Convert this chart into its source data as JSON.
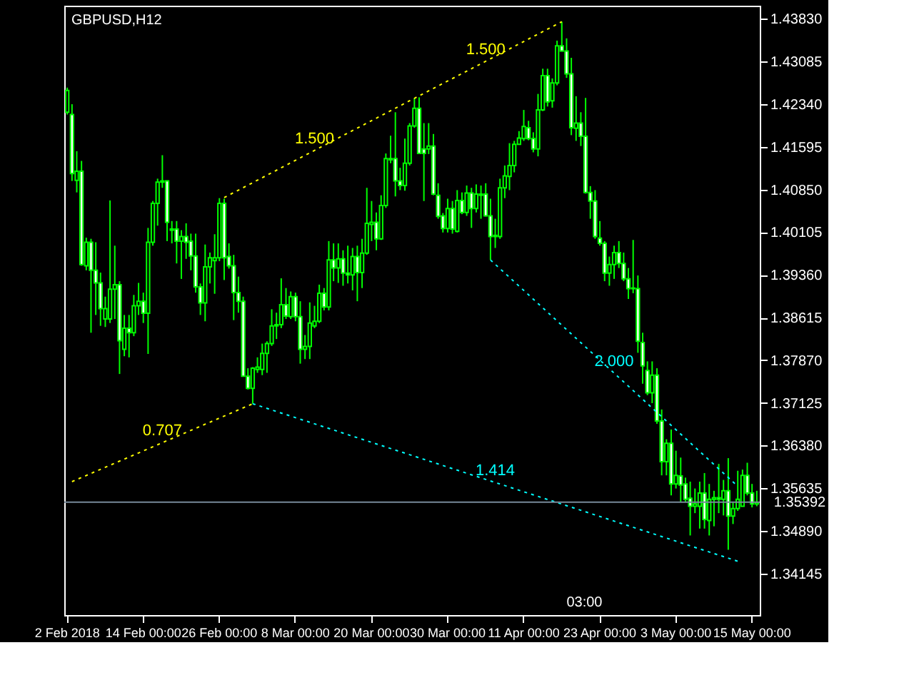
{
  "chart_data": {
    "type": "candlestick",
    "title": "GBPUSD,H12",
    "categories": [
      "2 Feb 2018",
      null,
      null,
      null,
      null,
      null,
      null,
      null,
      null,
      null,
      null,
      null,
      null,
      null,
      null,
      null,
      "14 Feb 00:00",
      null,
      null,
      null,
      null,
      null,
      null,
      null,
      null,
      null,
      null,
      null,
      null,
      null,
      null,
      null,
      "26 Feb 00:00",
      null,
      null,
      null,
      null,
      null,
      null,
      null,
      null,
      null,
      null,
      null,
      null,
      null,
      null,
      null,
      "8 Mar 00:00",
      null,
      null,
      null,
      null,
      null,
      null,
      null,
      null,
      null,
      null,
      null,
      null,
      null,
      null,
      null,
      "20 Mar 00:00",
      null,
      null,
      null,
      null,
      null,
      null,
      null,
      null,
      null,
      null,
      null,
      null,
      null,
      null,
      null,
      "30 Mar 00:00",
      null,
      null,
      null,
      null,
      null,
      null,
      null,
      null,
      null,
      null,
      null,
      null,
      null,
      null,
      null,
      "11 Apr 00:00",
      null,
      null,
      null,
      null,
      null,
      null,
      null,
      null,
      null,
      null,
      null,
      null,
      null,
      null,
      null,
      "23 Apr 00:00",
      null,
      null,
      null,
      null,
      null,
      null,
      null,
      null,
      null,
      null,
      null,
      null,
      null,
      null,
      null,
      "3 May 00:00",
      null,
      null,
      null,
      null,
      null,
      null,
      null,
      null,
      null,
      null,
      null,
      null,
      null,
      null,
      null,
      "15 May 00:00",
      null
    ],
    "ohlc": [
      [
        1.422,
        1.4263,
        1.4216,
        1.4258
      ],
      [
        1.4216,
        1.4234,
        1.41,
        1.4113
      ],
      [
        1.4101,
        1.4152,
        1.408,
        1.4117
      ],
      [
        1.4117,
        1.4135,
        1.3952,
        1.3954
      ],
      [
        1.3952,
        1.4001,
        1.3944,
        1.3993
      ],
      [
        1.3993,
        1.3999,
        1.3835,
        1.3944
      ],
      [
        1.3944,
        1.3993,
        1.3866,
        1.3922
      ],
      [
        1.3922,
        1.394,
        1.3847,
        1.3877
      ],
      [
        1.3859,
        1.3898,
        1.3845,
        1.3877
      ],
      [
        1.3859,
        1.4066,
        1.3852,
        1.3911
      ],
      [
        1.3911,
        1.3987,
        1.3859,
        1.3919
      ],
      [
        1.3919,
        1.3925,
        1.3763,
        1.3821
      ],
      [
        1.3806,
        1.3866,
        1.3794,
        1.3843
      ],
      [
        1.3843,
        1.3866,
        1.3792,
        1.3835
      ],
      [
        1.3835,
        1.3901,
        1.3829,
        1.3882
      ],
      [
        1.3882,
        1.3922,
        1.3866,
        1.389
      ],
      [
        1.389,
        1.3905,
        1.3852,
        1.3869
      ],
      [
        1.3869,
        1.4018,
        1.3798,
        1.3993
      ],
      [
        1.3993,
        1.4065,
        1.3987,
        1.4061
      ],
      [
        1.4061,
        1.4104,
        1.4022,
        1.4098
      ],
      [
        1.4098,
        1.4145,
        1.4088,
        1.41
      ],
      [
        1.41,
        1.4101,
        1.3995,
        1.4028
      ],
      [
        1.4016,
        1.403,
        1.3991,
        1.4014
      ],
      [
        1.4016,
        1.403,
        1.3956,
        1.3995
      ],
      [
        1.3995,
        1.4014,
        1.3929,
        1.4003
      ],
      [
        1.4003,
        1.4026,
        1.3964,
        1.3993
      ],
      [
        1.3995,
        1.4008,
        1.3944,
        1.3969
      ],
      [
        1.3969,
        1.4008,
        1.3905,
        1.3915
      ],
      [
        1.3915,
        1.3921,
        1.3866,
        1.3887
      ],
      [
        1.3887,
        1.3989,
        1.3855,
        1.395
      ],
      [
        1.395,
        1.3975,
        1.3921,
        1.3966
      ],
      [
        1.3961,
        1.4007,
        1.3903,
        1.3966
      ],
      [
        1.3966,
        1.407,
        1.396,
        1.4061
      ],
      [
        1.4061,
        1.4069,
        1.3927,
        1.3966
      ],
      [
        1.3968,
        1.3991,
        1.3947,
        1.3952
      ],
      [
        1.3952,
        1.3971,
        1.3857,
        1.3905
      ],
      [
        1.3905,
        1.3933,
        1.387,
        1.389
      ],
      [
        1.389,
        1.3898,
        1.3759,
        1.3759
      ],
      [
        1.3759,
        1.3773,
        1.3736,
        1.3738
      ],
      [
        1.3738,
        1.3775,
        1.3711,
        1.3773
      ],
      [
        1.3771,
        1.3792,
        1.3765,
        1.3775
      ],
      [
        1.3771,
        1.3816,
        1.3761,
        1.3799
      ],
      [
        1.3799,
        1.382,
        1.3765,
        1.3816
      ],
      [
        1.3816,
        1.3876,
        1.3812,
        1.3847
      ],
      [
        1.3847,
        1.387,
        1.3824,
        1.3849
      ],
      [
        1.3849,
        1.393,
        1.3843,
        1.3884
      ],
      [
        1.3884,
        1.3913,
        1.3859,
        1.3864
      ],
      [
        1.3863,
        1.3907,
        1.3859,
        1.3898
      ],
      [
        1.3898,
        1.3905,
        1.3855,
        1.3863
      ],
      [
        1.3863,
        1.389,
        1.3781,
        1.3806
      ],
      [
        1.3806,
        1.3831,
        1.3789,
        1.3811
      ],
      [
        1.3811,
        1.3888,
        1.3789,
        1.3852
      ],
      [
        1.3847,
        1.3882,
        1.3843,
        1.3855
      ],
      [
        1.3855,
        1.3919,
        1.3852,
        1.3904
      ],
      [
        1.3904,
        1.3913,
        1.3874,
        1.388
      ],
      [
        1.388,
        1.3995,
        1.3874,
        1.3962
      ],
      [
        1.3962,
        1.3991,
        1.3925,
        1.3948
      ],
      [
        1.3948,
        1.3991,
        1.3922,
        1.3964
      ],
      [
        1.3964,
        1.3979,
        1.3917,
        1.3939
      ],
      [
        1.3939,
        1.3987,
        1.3921,
        1.3936
      ],
      [
        1.3936,
        1.3983,
        1.3909,
        1.3968
      ],
      [
        1.3968,
        1.3987,
        1.389,
        1.394
      ],
      [
        1.394,
        1.3999,
        1.3913,
        1.3974
      ],
      [
        1.3974,
        1.4088,
        1.3971,
        1.4026
      ],
      [
        1.4024,
        1.4065,
        1.3995,
        1.4028
      ],
      [
        1.4028,
        1.4045,
        1.3979,
        1.3999
      ],
      [
        1.3999,
        1.4075,
        1.3997,
        1.4057
      ],
      [
        1.4057,
        1.4148,
        1.4053,
        1.4139
      ],
      [
        1.4139,
        1.4179,
        1.4131,
        1.4137
      ],
      [
        1.4139,
        1.422,
        1.4073,
        1.41
      ],
      [
        1.41,
        1.4123,
        1.4084,
        1.4092
      ],
      [
        1.4092,
        1.4174,
        1.4083,
        1.4131
      ],
      [
        1.4131,
        1.4201,
        1.4127,
        1.4196
      ],
      [
        1.4196,
        1.4244,
        1.4193,
        1.4227
      ],
      [
        1.4227,
        1.4246,
        1.4147,
        1.4148
      ],
      [
        1.4156,
        1.4201,
        1.4065,
        1.4148
      ],
      [
        1.4156,
        1.4201,
        1.4147,
        1.4161
      ],
      [
        1.4161,
        1.4182,
        1.4075,
        1.4077
      ],
      [
        1.4075,
        1.4096,
        1.4034,
        1.4038
      ],
      [
        1.4039,
        1.4044,
        1.401,
        1.4017
      ],
      [
        1.4017,
        1.4069,
        1.401,
        1.4052
      ],
      [
        1.4052,
        1.4065,
        1.4008,
        1.4016
      ],
      [
        1.4012,
        1.4084,
        1.401,
        1.4066
      ],
      [
        1.4066,
        1.408,
        1.4042,
        1.4045
      ],
      [
        1.4045,
        1.4092,
        1.4039,
        1.4079
      ],
      [
        1.4079,
        1.4088,
        1.4018,
        1.4052
      ],
      [
        1.4052,
        1.4094,
        1.4045,
        1.4077
      ],
      [
        1.4077,
        1.4092,
        1.4034,
        1.4075
      ],
      [
        1.4077,
        1.4096,
        1.4038,
        1.4039
      ],
      [
        1.4039,
        1.4069,
        1.3962,
        1.4003
      ],
      [
        1.4003,
        1.4034,
        1.3983,
        1.4005
      ],
      [
        1.4003,
        1.4104,
        1.3999,
        1.4088
      ],
      [
        1.4088,
        1.4127,
        1.407,
        1.4109
      ],
      [
        1.4108,
        1.4166,
        1.4084,
        1.4127
      ],
      [
        1.4127,
        1.417,
        1.4115,
        1.4164
      ],
      [
        1.4164,
        1.4187,
        1.4164,
        1.4175
      ],
      [
        1.4174,
        1.4224,
        1.417,
        1.4195
      ],
      [
        1.4193,
        1.4205,
        1.4171,
        1.4174
      ],
      [
        1.4174,
        1.4185,
        1.415,
        1.4156
      ],
      [
        1.4156,
        1.4252,
        1.4143,
        1.4224
      ],
      [
        1.4224,
        1.4296,
        1.4222,
        1.4284
      ],
      [
        1.4284,
        1.4296,
        1.423,
        1.4238
      ],
      [
        1.424,
        1.4279,
        1.4228,
        1.4271
      ],
      [
        1.4271,
        1.4345,
        1.4267,
        1.4336
      ],
      [
        1.4336,
        1.4378,
        1.4326,
        1.4327
      ],
      [
        1.4327,
        1.4349,
        1.428,
        1.4287
      ],
      [
        1.4287,
        1.4315,
        1.418,
        1.4193
      ],
      [
        1.4192,
        1.4248,
        1.417,
        1.4201
      ],
      [
        1.4201,
        1.422,
        1.4161,
        1.4178
      ],
      [
        1.4178,
        1.4245,
        1.4078,
        1.408
      ],
      [
        1.408,
        1.4091,
        1.4034,
        1.4065
      ],
      [
        1.4065,
        1.4084,
        1.3999,
        1.4003
      ],
      [
        1.4,
        1.403,
        1.3987,
        1.3991
      ],
      [
        1.3991,
        1.3995,
        1.3925,
        1.3939
      ],
      [
        1.3939,
        1.3968,
        1.3917,
        1.3954
      ],
      [
        1.3954,
        1.3987,
        1.3929,
        1.3975
      ],
      [
        1.3975,
        1.3995,
        1.3948,
        1.3956
      ],
      [
        1.3956,
        1.3975,
        1.3925,
        1.3929
      ],
      [
        1.3929,
        1.3948,
        1.3894,
        1.3912
      ],
      [
        1.3913,
        1.3997,
        1.3904,
        1.3912
      ],
      [
        1.3912,
        1.3935,
        1.38,
        1.382
      ],
      [
        1.3818,
        1.3835,
        1.3746,
        1.3777
      ],
      [
        1.3769,
        1.3785,
        1.3726,
        1.373
      ],
      [
        1.373,
        1.3785,
        1.3712,
        1.3761
      ],
      [
        1.3761,
        1.3773,
        1.3676,
        1.3681
      ],
      [
        1.3681,
        1.3701,
        1.3586,
        1.361
      ],
      [
        1.361,
        1.3649,
        1.3586,
        1.3642
      ],
      [
        1.3642,
        1.3666,
        1.3551,
        1.3571
      ],
      [
        1.3571,
        1.3629,
        1.3563,
        1.3586
      ],
      [
        1.3585,
        1.3617,
        1.354,
        1.3569
      ],
      [
        1.3571,
        1.3582,
        1.354,
        1.3544
      ],
      [
        1.3546,
        1.3575,
        1.3481,
        1.3532
      ],
      [
        1.3532,
        1.3563,
        1.352,
        1.3536
      ],
      [
        1.3532,
        1.3575,
        1.3493,
        1.3555
      ],
      [
        1.3555,
        1.359,
        1.3493,
        1.3509
      ],
      [
        1.3507,
        1.3571,
        1.3481,
        1.3544
      ],
      [
        1.3544,
        1.3559,
        1.3497,
        1.3547
      ],
      [
        1.3547,
        1.3606,
        1.352,
        1.3544
      ],
      [
        1.3544,
        1.3578,
        1.3516,
        1.3559
      ],
      [
        1.3559,
        1.3616,
        1.3456,
        1.3515
      ],
      [
        1.3515,
        1.354,
        1.3501,
        1.3528
      ],
      [
        1.3528,
        1.3594,
        1.3524,
        1.3544
      ],
      [
        1.3532,
        1.3596,
        1.3532,
        1.3586
      ],
      [
        1.3586,
        1.3608,
        1.3551,
        1.3555
      ],
      [
        1.3555,
        1.3571,
        1.353,
        1.3536
      ],
      [
        1.3536,
        1.3559,
        1.3532,
        1.3539
      ]
    ],
    "color": "#00ff00",
    "series": [
      {
        "type": "line",
        "name": "0.707",
        "color": "#ffff00",
        "line_style": "dotted",
        "values": [
          null,
          1.3575,
          null,
          null,
          null,
          null,
          null,
          null,
          null,
          null,
          null,
          null,
          null,
          null,
          null,
          null,
          null,
          null,
          null,
          null,
          null,
          null,
          null,
          null,
          null,
          null,
          null,
          null,
          null,
          null,
          null,
          null,
          null,
          null,
          null,
          null,
          null,
          null,
          null,
          1.3711,
          null,
          null,
          null,
          null,
          null,
          null,
          null,
          null,
          null,
          null,
          null,
          null,
          null,
          null,
          null,
          null,
          null,
          null,
          null,
          null,
          null,
          null,
          null,
          null,
          null,
          null,
          null,
          null,
          null,
          null,
          null,
          null,
          null,
          null,
          null,
          null,
          null,
          null,
          null,
          null,
          null,
          null,
          null,
          null,
          null,
          null,
          null,
          null,
          null,
          null,
          null,
          null,
          null,
          null,
          null,
          null,
          null,
          null,
          null,
          null,
          null,
          null,
          null,
          null,
          null,
          null,
          null,
          null,
          null,
          null,
          null,
          null,
          null,
          null,
          null,
          null,
          null,
          null,
          null,
          null,
          null,
          null,
          null,
          null,
          null,
          null,
          null,
          null,
          null,
          null,
          null,
          null,
          null,
          null,
          null,
          null,
          null,
          null,
          null,
          null,
          null,
          null,
          null,
          null,
          null,
          null
        ]
      },
      {
        "type": "line",
        "name": "1.500",
        "color": "#ffff00",
        "line_style": "dotted",
        "values": [
          null,
          null,
          null,
          null,
          null,
          null,
          null,
          null,
          null,
          null,
          null,
          null,
          null,
          null,
          null,
          null,
          null,
          null,
          null,
          null,
          null,
          null,
          null,
          null,
          null,
          null,
          null,
          null,
          null,
          null,
          null,
          null,
          null,
          1.4071,
          null,
          null,
          null,
          null,
          null,
          null,
          null,
          null,
          null,
          null,
          null,
          null,
          null,
          null,
          null,
          null,
          null,
          null,
          null,
          null,
          null,
          null,
          null,
          null,
          null,
          null,
          null,
          null,
          null,
          null,
          null,
          null,
          null,
          null,
          null,
          null,
          null,
          null,
          1.424,
          null,
          null,
          null,
          null,
          null,
          null,
          null,
          null,
          null,
          null,
          null,
          null,
          null,
          null,
          null,
          null,
          null,
          null,
          null,
          null,
          null,
          null,
          null,
          null,
          null,
          null,
          null,
          null,
          null,
          null,
          null,
          1.4378,
          null,
          null,
          null,
          null,
          null,
          null,
          null,
          null,
          null,
          null,
          null,
          null,
          null,
          null,
          null,
          null,
          null,
          null,
          null,
          null,
          null,
          null,
          null,
          null,
          null,
          null,
          null,
          null,
          null,
          null,
          null,
          null,
          null,
          null,
          null,
          null,
          null,
          null,
          null,
          null,
          null
        ]
      },
      {
        "type": "line",
        "name": "1.414",
        "color": "#00ffff",
        "line_style": "dotted",
        "values": [
          null,
          null,
          null,
          null,
          null,
          null,
          null,
          null,
          null,
          null,
          null,
          null,
          null,
          null,
          null,
          null,
          null,
          null,
          null,
          null,
          null,
          null,
          null,
          null,
          null,
          null,
          null,
          null,
          null,
          null,
          null,
          null,
          null,
          null,
          null,
          null,
          null,
          null,
          null,
          1.3711,
          null,
          null,
          null,
          null,
          null,
          null,
          null,
          null,
          null,
          null,
          null,
          null,
          null,
          null,
          null,
          null,
          null,
          null,
          null,
          null,
          null,
          null,
          null,
          null,
          null,
          null,
          null,
          null,
          null,
          null,
          null,
          null,
          null,
          null,
          null,
          null,
          null,
          null,
          null,
          null,
          null,
          null,
          null,
          null,
          null,
          null,
          null,
          null,
          null,
          null,
          null,
          null,
          null,
          null,
          null,
          null,
          null,
          null,
          null,
          null,
          null,
          null,
          null,
          null,
          null,
          null,
          null,
          null,
          null,
          null,
          null,
          null,
          null,
          null,
          null,
          null,
          null,
          null,
          null,
          null,
          null,
          null,
          null,
          null,
          null,
          null,
          null,
          null,
          null,
          null,
          null,
          null,
          null,
          null,
          null,
          null,
          null,
          null,
          null,
          null,
          null,
          1.3436,
          null,
          null,
          null,
          null
        ]
      },
      {
        "type": "line",
        "name": "2.000",
        "color": "#00ffff",
        "line_style": "dotted",
        "values": [
          null,
          null,
          null,
          null,
          null,
          null,
          null,
          null,
          null,
          null,
          null,
          null,
          null,
          null,
          null,
          null,
          null,
          null,
          null,
          null,
          null,
          null,
          null,
          null,
          null,
          null,
          null,
          null,
          null,
          null,
          null,
          null,
          null,
          null,
          null,
          null,
          null,
          null,
          null,
          null,
          null,
          null,
          null,
          null,
          null,
          null,
          null,
          null,
          null,
          null,
          null,
          null,
          null,
          null,
          null,
          null,
          null,
          null,
          null,
          null,
          null,
          null,
          null,
          null,
          null,
          null,
          null,
          null,
          null,
          null,
          null,
          null,
          null,
          null,
          null,
          null,
          null,
          null,
          null,
          null,
          null,
          null,
          null,
          null,
          null,
          null,
          null,
          null,
          null,
          1.3962,
          null,
          null,
          null,
          null,
          null,
          null,
          null,
          null,
          null,
          null,
          null,
          null,
          null,
          null,
          null,
          null,
          null,
          null,
          null,
          null,
          null,
          null,
          null,
          null,
          null,
          null,
          null,
          null,
          null,
          null,
          null,
          null,
          null,
          null,
          null,
          null,
          null,
          null,
          null,
          null,
          null,
          null,
          null,
          null,
          null,
          null,
          null,
          null,
          null,
          null,
          null,
          1.3567,
          null,
          null,
          null,
          null
        ]
      }
    ],
    "ylim": [
      1.3342,
      1.4406
    ],
    "yticks": [
      {
        "value": 1.4383,
        "label": "1.43830"
      },
      {
        "value": 1.43085,
        "label": "1.43085"
      },
      {
        "value": 1.4234,
        "label": "1.42340"
      },
      {
        "value": 1.41595,
        "label": "1.41595"
      },
      {
        "value": 1.4085,
        "label": "1.40850"
      },
      {
        "value": 1.40105,
        "label": "1.40105"
      },
      {
        "value": 1.3936,
        "label": "1.39360"
      },
      {
        "value": 1.38615,
        "label": "1.38615"
      },
      {
        "value": 1.3787,
        "label": "1.37870"
      },
      {
        "value": 1.37125,
        "label": "1.37125"
      },
      {
        "value": 1.3638,
        "label": "1.36380"
      },
      {
        "value": 1.35635,
        "label": "1.35635"
      },
      {
        "value": 1.3489,
        "label": "1.34890"
      },
      {
        "value": 1.34145,
        "label": "1.34145"
      }
    ],
    "ref_lines": [
      {
        "axis": "y",
        "value": 1.35392,
        "label": "1.35392",
        "color": "#778899"
      }
    ],
    "annotations": [
      "03:00"
    ],
    "grid": false
  }
}
